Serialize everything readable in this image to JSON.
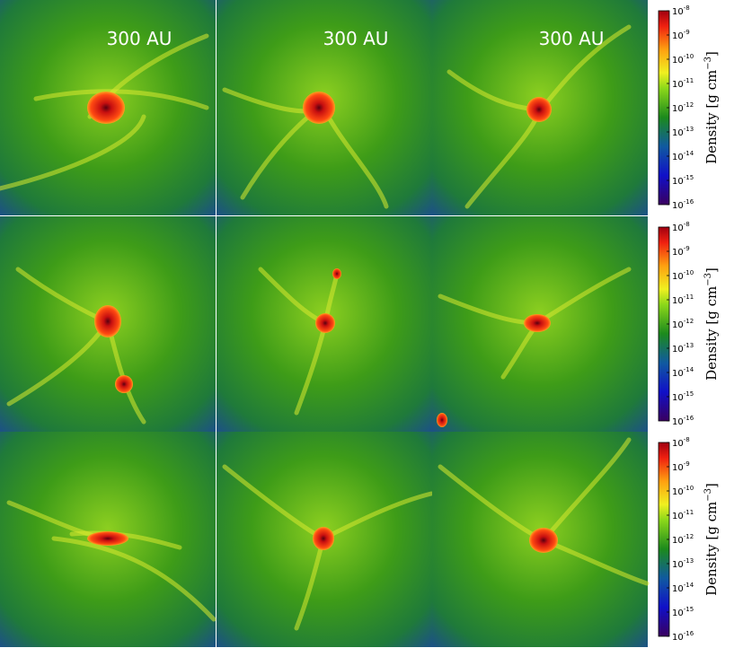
{
  "panels": [
    {
      "label": "300 AU"
    },
    {
      "label": "300 AU"
    },
    {
      "label": "300 AU"
    }
  ],
  "colorbar": {
    "base": "10",
    "ticks": [
      -8,
      -9,
      -10,
      -11,
      -12,
      -13,
      -14,
      -15,
      -16
    ],
    "lim": [
      -16,
      -8
    ],
    "label": "Density [g cm",
    "label_exp": "−3",
    "label_end": "]"
  }
}
